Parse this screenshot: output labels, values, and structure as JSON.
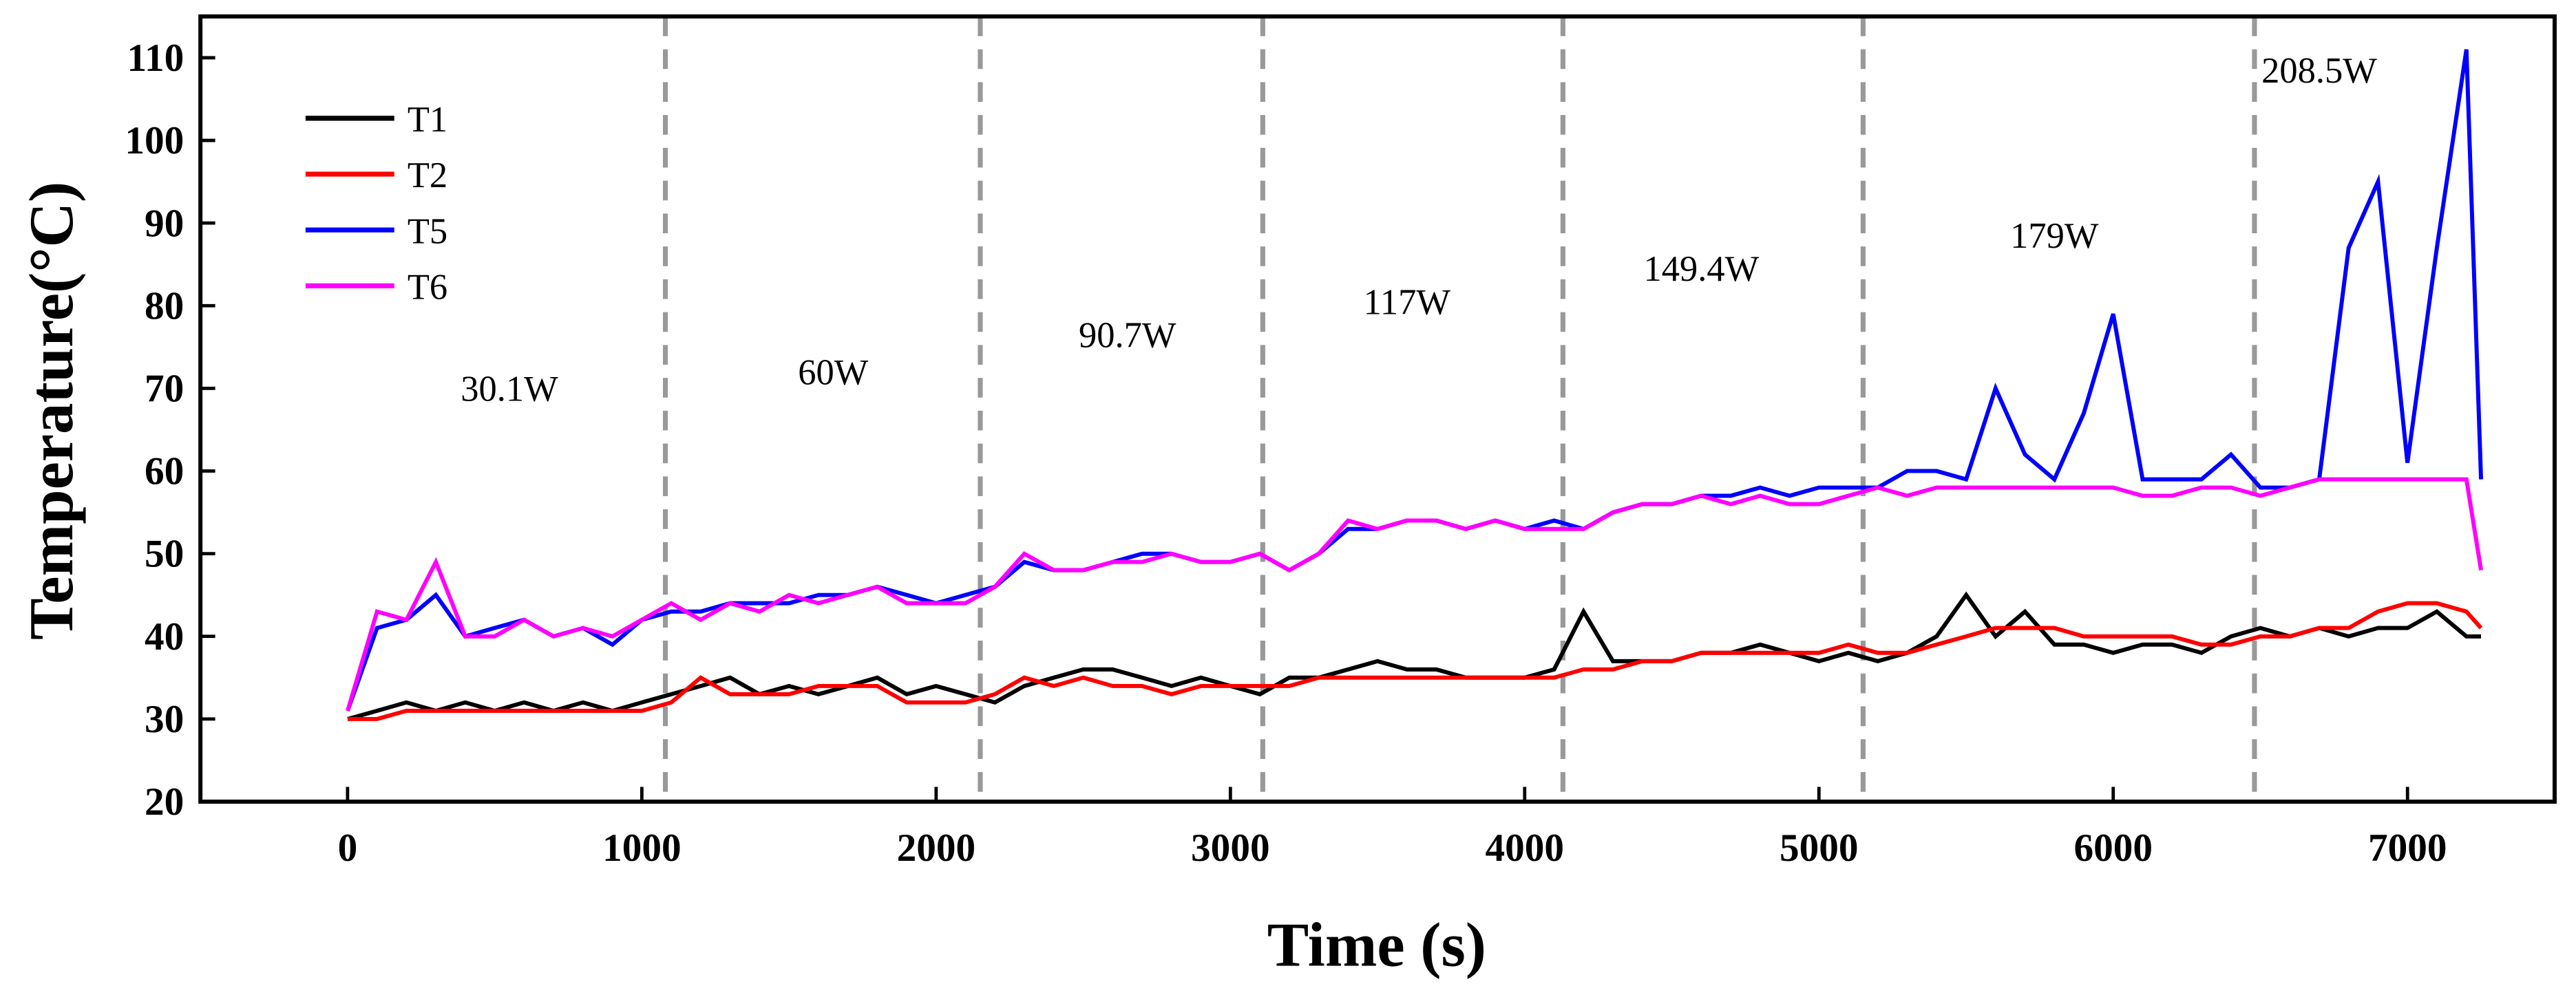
{
  "chart_data": {
    "type": "line",
    "xlabel": "Time (s)",
    "ylabel": "Temperature(°C)",
    "xlim": [
      -500,
      7500
    ],
    "ylim": [
      20,
      115
    ],
    "xticks": [
      0,
      1000,
      2000,
      3000,
      4000,
      5000,
      6000,
      7000
    ],
    "yticks": [
      20,
      30,
      40,
      50,
      60,
      70,
      80,
      90,
      100,
      110
    ],
    "vlines": [
      1080,
      2150,
      3110,
      4130,
      5150,
      6480
    ],
    "legend": "upper left",
    "annotations": [
      {
        "text": "30.1W",
        "x": 550,
        "y": 68.5
      },
      {
        "text": "60W",
        "x": 1650,
        "y": 70.5
      },
      {
        "text": "90.7W",
        "x": 2650,
        "y": 75
      },
      {
        "text": "117W",
        "x": 3600,
        "y": 79
      },
      {
        "text": "149.4W",
        "x": 4600,
        "y": 83
      },
      {
        "text": "179W",
        "x": 5800,
        "y": 87
      },
      {
        "text": "208.5W",
        "x": 6700,
        "y": 107
      }
    ],
    "x": [
      0,
      100,
      200,
      300,
      400,
      500,
      600,
      700,
      800,
      900,
      1000,
      1100,
      1200,
      1300,
      1400,
      1500,
      1600,
      1700,
      1800,
      1900,
      2000,
      2100,
      2200,
      2300,
      2400,
      2500,
      2600,
      2700,
      2800,
      2900,
      3000,
      3100,
      3200,
      3300,
      3400,
      3500,
      3600,
      3700,
      3800,
      3900,
      4000,
      4100,
      4200,
      4300,
      4400,
      4500,
      4600,
      4700,
      4800,
      4900,
      5000,
      5100,
      5200,
      5300,
      5400,
      5500,
      5600,
      5700,
      5800,
      5900,
      6000,
      6100,
      6200,
      6300,
      6400,
      6500,
      6600,
      6700,
      6800,
      6900,
      7000,
      7100,
      7200,
      7250
    ],
    "series": [
      {
        "name": "T1",
        "color": "#000000",
        "values": [
          30,
          31,
          32,
          31,
          32,
          31,
          32,
          31,
          32,
          31,
          32,
          33,
          34,
          35,
          33,
          34,
          33,
          34,
          35,
          33,
          34,
          33,
          32,
          34,
          35,
          36,
          36,
          35,
          34,
          35,
          34,
          33,
          35,
          35,
          36,
          37,
          36,
          36,
          35,
          35,
          35,
          36,
          43,
          37,
          37,
          37,
          38,
          38,
          39,
          38,
          37,
          38,
          37,
          38,
          40,
          45,
          40,
          43,
          39,
          39,
          38,
          39,
          39,
          38,
          40,
          41,
          40,
          41,
          40,
          41,
          41,
          43,
          40,
          40
        ]
      },
      {
        "name": "T2",
        "color": "#ff0000",
        "values": [
          30,
          30,
          31,
          31,
          31,
          31,
          31,
          31,
          31,
          31,
          31,
          32,
          35,
          33,
          33,
          33,
          34,
          34,
          34,
          32,
          32,
          32,
          33,
          35,
          34,
          35,
          34,
          34,
          33,
          34,
          34,
          34,
          34,
          35,
          35,
          35,
          35,
          35,
          35,
          35,
          35,
          35,
          36,
          36,
          37,
          37,
          38,
          38,
          38,
          38,
          38,
          39,
          38,
          38,
          39,
          40,
          41,
          41,
          41,
          40,
          40,
          40,
          40,
          39,
          39,
          40,
          40,
          41,
          41,
          43,
          44,
          44,
          43,
          41
        ]
      },
      {
        "name": "T5",
        "color": "#0000ff",
        "values": [
          31,
          41,
          42,
          45,
          40,
          41,
          42,
          40,
          41,
          39,
          42,
          43,
          43,
          44,
          44,
          44,
          45,
          45,
          46,
          45,
          44,
          45,
          46,
          49,
          48,
          48,
          49,
          50,
          50,
          49,
          49,
          50,
          48,
          50,
          53,
          53,
          54,
          54,
          53,
          54,
          53,
          54,
          53,
          55,
          56,
          56,
          57,
          57,
          58,
          57,
          58,
          58,
          58,
          60,
          60,
          59,
          70,
          62,
          59,
          67,
          79,
          59,
          59,
          59,
          62,
          58,
          58,
          59,
          87,
          95,
          61,
          87,
          111,
          59
        ]
      },
      {
        "name": "T6",
        "color": "#ff00ff",
        "values": [
          31,
          43,
          42,
          49,
          40,
          40,
          42,
          40,
          41,
          40,
          42,
          44,
          42,
          44,
          43,
          45,
          44,
          45,
          46,
          44,
          44,
          44,
          46,
          50,
          48,
          48,
          49,
          49,
          50,
          49,
          49,
          50,
          48,
          50,
          54,
          53,
          54,
          54,
          53,
          54,
          53,
          53,
          53,
          55,
          56,
          56,
          57,
          56,
          57,
          56,
          56,
          57,
          58,
          57,
          58,
          58,
          58,
          58,
          58,
          58,
          58,
          57,
          57,
          58,
          58,
          57,
          58,
          59,
          59,
          59,
          59,
          59,
          59,
          48
        ]
      }
    ]
  }
}
